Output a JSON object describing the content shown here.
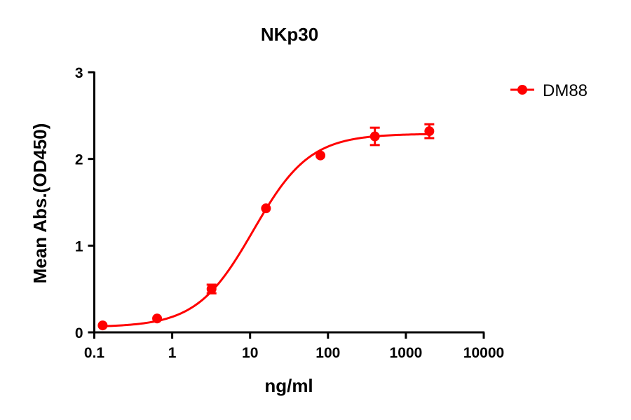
{
  "chart_data": {
    "type": "scatter",
    "title": "NKp30",
    "xlabel": "ng/ml",
    "ylabel": "Mean Abs.(OD450)",
    "xscale": "log",
    "xlim": [
      0.1,
      10000
    ],
    "ylim": [
      0,
      3
    ],
    "xticks": [
      "0.1",
      "1",
      "10",
      "100",
      "1000",
      "10000"
    ],
    "xtick_values": [
      0.1,
      1,
      10,
      100,
      1000,
      10000
    ],
    "yticks": [
      "0",
      "1",
      "2",
      "3"
    ],
    "ytick_values": [
      0,
      1,
      2,
      3
    ],
    "grid": false,
    "legend_position": "top-right",
    "series": [
      {
        "name": "DM88",
        "color": "#ff0000",
        "x": [
          0.128,
          0.64,
          3.2,
          16,
          80,
          400,
          2000
        ],
        "y": [
          0.08,
          0.16,
          0.5,
          1.43,
          2.04,
          2.26,
          2.32
        ],
        "error": [
          0.01,
          0.01,
          0.05,
          0.02,
          0.02,
          0.1,
          0.08
        ],
        "fit": {
          "model": "4PL",
          "bottom": 0.06,
          "top": 2.29,
          "ec50": 11,
          "hill": 1.2
        }
      }
    ]
  }
}
